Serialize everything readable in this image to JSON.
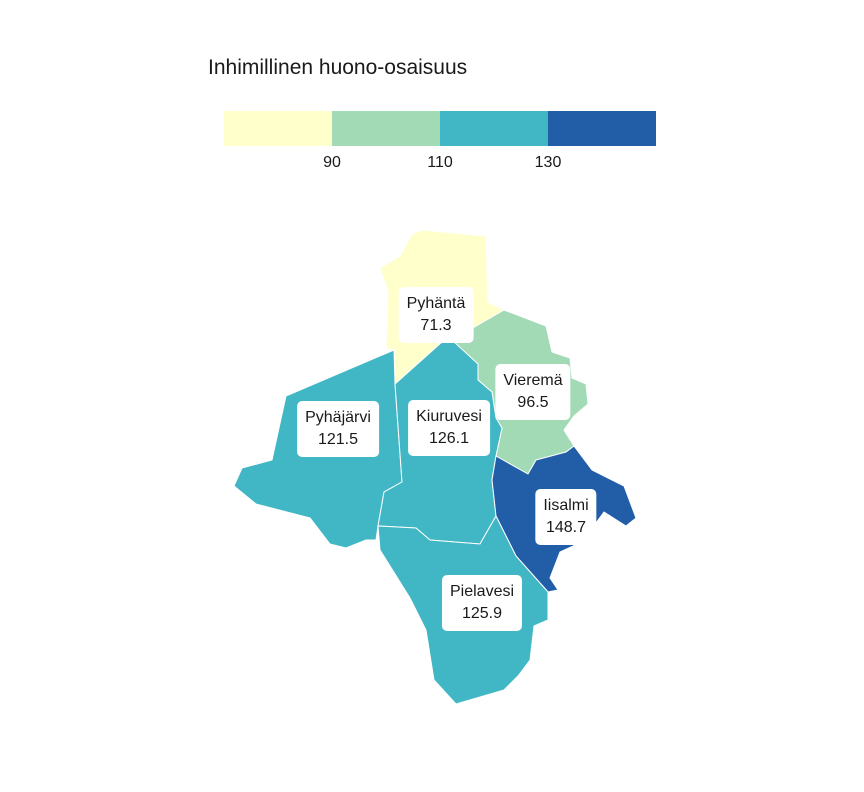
{
  "legend": {
    "title": "Inhimillinen huono-osaisuus",
    "colors": [
      "#ffffcc",
      "#a1dab4",
      "#41b6c4",
      "#225ea8"
    ],
    "breaks": [
      "90",
      "110",
      "130"
    ]
  },
  "regions": [
    {
      "name": "Pyhäntä",
      "value": "71.3",
      "color": "#ffffcc"
    },
    {
      "name": "Vieremä",
      "value": "96.5",
      "color": "#a1dab4"
    },
    {
      "name": "Pyhäjärvi",
      "value": "121.5",
      "color": "#41b6c4"
    },
    {
      "name": "Kiuruvesi",
      "value": "126.1",
      "color": "#41b6c4"
    },
    {
      "name": "Iisalmi",
      "value": "148.7",
      "color": "#225ea8"
    },
    {
      "name": "Pielavesi",
      "value": "125.9",
      "color": "#41b6c4"
    }
  ]
}
